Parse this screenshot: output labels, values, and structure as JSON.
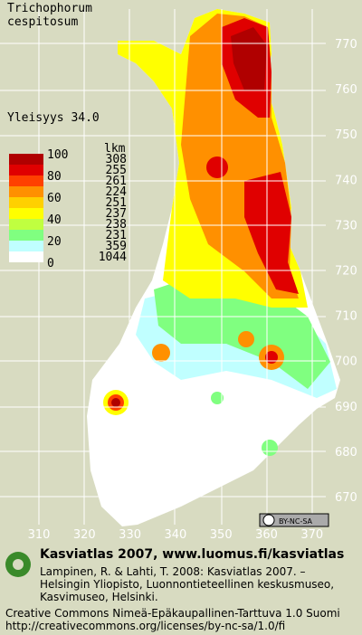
{
  "title": {
    "genus": "Trichophorum",
    "species": "cespitosum"
  },
  "frequency": "Yleisyys  34.0",
  "legend": {
    "header": "lkm",
    "scale": [
      "100",
      "80",
      "60",
      "40",
      "20",
      "0"
    ],
    "counts": [
      "308",
      "255",
      "261",
      "224",
      "251",
      "237",
      "238",
      "231",
      "359",
      "1044"
    ]
  },
  "axes": {
    "north": [
      "770",
      "760",
      "750",
      "740",
      "730",
      "720",
      "710",
      "700",
      "690",
      "680",
      "670"
    ],
    "east": [
      "310",
      "320",
      "330",
      "340",
      "350",
      "360",
      "370"
    ]
  },
  "license_badge": "BY-NC-SA",
  "footer": {
    "heading": "Kasviatlas 2007, www.luomus.fi/kasviatlas",
    "citation": [
      "Lampinen, R. & Lahti, T. 2008: Kasviatlas 2007. –",
      "Helsingin Yliopisto, Luonnontieteellinen keskusmuseo,",
      "Kasvimuseo, Helsinki."
    ],
    "license": [
      "Creative Commons Nimeä-Epäkaupallinen-Tarttuva 1.0 Suomi",
      "http://creativecommons.org/licenses/by-nc-sa/1.0/fi"
    ]
  }
}
